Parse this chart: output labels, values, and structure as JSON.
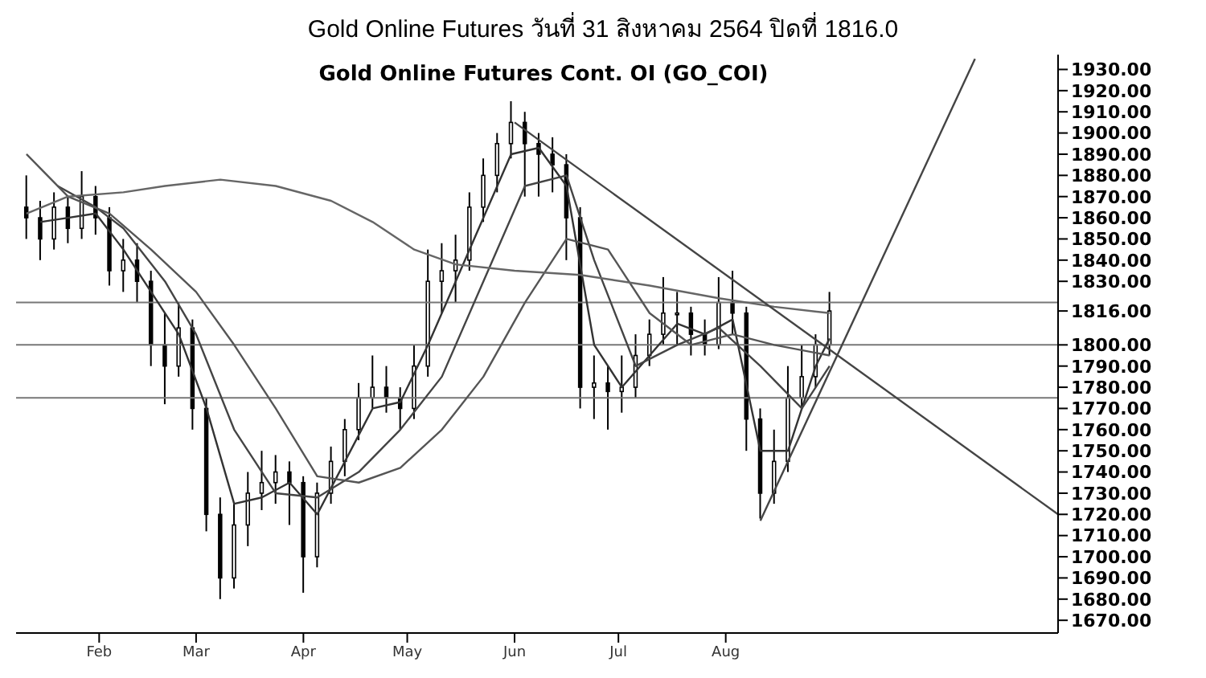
{
  "chart_data": {
    "type": "candlestick",
    "title": "Gold Online Futures วันที่   31 สิงหาคม   2564 ปิดที่   1816.0",
    "subtitle": "Gold  Online  Futures  Cont.  OI  (GO_COI)",
    "x": [
      "--01-11",
      "--01-15",
      "--01-19",
      "--01-23",
      "--01-27",
      "--01-31",
      "--02-04",
      "--02-08",
      "--02-12",
      "--02-16",
      "--02-20",
      "--02-24",
      "--02-28",
      "--03-04",
      "--03-08",
      "--03-12",
      "--03-16",
      "--03-20",
      "--03-24",
      "--03-28",
      "--04-01",
      "--04-05",
      "--04-09",
      "--04-13",
      "--04-17",
      "--04-21",
      "--04-25",
      "--04-29",
      "--05-03",
      "--05-07",
      "--05-11",
      "--05-15",
      "--05-19",
      "--05-23",
      "--05-27",
      "--05-31",
      "--06-04",
      "--06-08",
      "--06-12",
      "--06-16",
      "--06-20",
      "--06-24",
      "--06-28",
      "--07-02",
      "--07-06",
      "--07-10",
      "--07-14",
      "--07-18",
      "--07-22",
      "--07-26",
      "--07-30",
      "--08-03",
      "--08-07",
      "--08-11",
      "--08-15",
      "--08-19",
      "--08-23",
      "--08-27",
      "--08-31"
    ],
    "ohlc": [
      [
        1865,
        1880,
        1850,
        1860
      ],
      [
        1860,
        1868,
        1840,
        1850
      ],
      [
        1850,
        1872,
        1845,
        1865
      ],
      [
        1865,
        1870,
        1848,
        1855
      ],
      [
        1855,
        1882,
        1850,
        1870
      ],
      [
        1870,
        1875,
        1852,
        1860
      ],
      [
        1860,
        1865,
        1828,
        1835
      ],
      [
        1835,
        1850,
        1825,
        1840
      ],
      [
        1840,
        1848,
        1820,
        1830
      ],
      [
        1830,
        1835,
        1790,
        1800
      ],
      [
        1800,
        1815,
        1772,
        1790
      ],
      [
        1790,
        1820,
        1785,
        1808
      ],
      [
        1808,
        1812,
        1760,
        1770
      ],
      [
        1770,
        1775,
        1712,
        1720
      ],
      [
        1720,
        1728,
        1680,
        1690
      ],
      [
        1690,
        1725,
        1685,
        1715
      ],
      [
        1715,
        1740,
        1705,
        1730
      ],
      [
        1730,
        1750,
        1722,
        1735
      ],
      [
        1735,
        1748,
        1725,
        1740
      ],
      [
        1740,
        1745,
        1715,
        1735
      ],
      [
        1735,
        1738,
        1683,
        1700
      ],
      [
        1700,
        1735,
        1695,
        1730
      ],
      [
        1730,
        1752,
        1725,
        1745
      ],
      [
        1745,
        1765,
        1738,
        1760
      ],
      [
        1760,
        1782,
        1755,
        1775
      ],
      [
        1775,
        1795,
        1770,
        1780
      ],
      [
        1780,
        1790,
        1768,
        1775
      ],
      [
        1775,
        1780,
        1760,
        1770
      ],
      [
        1770,
        1800,
        1765,
        1790
      ],
      [
        1790,
        1845,
        1785,
        1830
      ],
      [
        1830,
        1848,
        1815,
        1835
      ],
      [
        1835,
        1852,
        1820,
        1840
      ],
      [
        1840,
        1872,
        1835,
        1865
      ],
      [
        1865,
        1888,
        1858,
        1880
      ],
      [
        1880,
        1900,
        1872,
        1895
      ],
      [
        1895,
        1915,
        1888,
        1905
      ],
      [
        1905,
        1910,
        1870,
        1895
      ],
      [
        1895,
        1900,
        1870,
        1890
      ],
      [
        1890,
        1898,
        1872,
        1885
      ],
      [
        1885,
        1890,
        1840,
        1860
      ],
      [
        1860,
        1865,
        1770,
        1780
      ],
      [
        1780,
        1795,
        1765,
        1782
      ],
      [
        1782,
        1790,
        1760,
        1778
      ],
      [
        1778,
        1795,
        1768,
        1780
      ],
      [
        1780,
        1805,
        1775,
        1795
      ],
      [
        1795,
        1812,
        1790,
        1805
      ],
      [
        1805,
        1832,
        1800,
        1815
      ],
      [
        1815,
        1825,
        1800,
        1815
      ],
      [
        1815,
        1818,
        1795,
        1805
      ],
      [
        1805,
        1812,
        1795,
        1800
      ],
      [
        1800,
        1832,
        1798,
        1820
      ],
      [
        1820,
        1835,
        1805,
        1815
      ],
      [
        1815,
        1818,
        1750,
        1765
      ],
      [
        1765,
        1770,
        1718,
        1730
      ],
      [
        1730,
        1760,
        1725,
        1745
      ],
      [
        1745,
        1790,
        1740,
        1775
      ],
      [
        1775,
        1800,
        1770,
        1785
      ],
      [
        1785,
        1805,
        1780,
        1800
      ],
      [
        1800,
        1825,
        1795,
        1816
      ]
    ],
    "series": [
      {
        "type": "line",
        "color": "#333333",
        "x": [
          "--01-15",
          "--01-23",
          "--01-31",
          "--02-08",
          "--02-16",
          "--02-24",
          "--03-04",
          "--03-12",
          "--03-20",
          "--03-28",
          "--04-05",
          "--04-13",
          "--04-21",
          "--04-29",
          "--05-07",
          "--05-15",
          "--05-23",
          "--05-31",
          "--06-08",
          "--06-16",
          "--06-24",
          "--07-02",
          "--07-10",
          "--07-18",
          "--07-26",
          "--08-03",
          "--08-11",
          "--08-19",
          "--08-27",
          "--08-31"
        ],
        "values": [
          1858,
          1860,
          1862,
          1845,
          1825,
          1805,
          1770,
          1725,
          1728,
          1735,
          1720,
          1745,
          1770,
          1773,
          1800,
          1830,
          1860,
          1890,
          1893,
          1875,
          1800,
          1780,
          1795,
          1810,
          1805,
          1812,
          1750,
          1750,
          1790,
          1803
        ]
      },
      {
        "type": "line",
        "color": "#444444",
        "x": [
          "--01-20",
          "--01-31",
          "--02-08",
          "--02-20",
          "--03-01",
          "--03-12",
          "--03-24",
          "--04-05",
          "--04-17",
          "--04-29",
          "--05-11",
          "--05-23",
          "--06-04",
          "--06-16",
          "--06-24",
          "--07-06",
          "--07-18",
          "--07-30",
          "--08-11",
          "--08-23",
          "--08-31"
        ],
        "values": [
          1875,
          1865,
          1855,
          1830,
          1805,
          1760,
          1730,
          1728,
          1740,
          1760,
          1785,
          1830,
          1875,
          1880,
          1840,
          1790,
          1800,
          1808,
          1790,
          1770,
          1790
        ]
      },
      {
        "type": "line",
        "color": "#555555",
        "x": [
          "--01-11",
          "--01-23",
          "--02-04",
          "--02-16",
          "--03-01",
          "--03-12",
          "--03-24",
          "--04-05",
          "--04-17",
          "--04-29",
          "--05-11",
          "--05-23",
          "--06-04",
          "--06-16",
          "--06-28",
          "--07-10",
          "--07-22",
          "--08-03",
          "--08-15",
          "--08-31"
        ],
        "values": [
          1890,
          1870,
          1862,
          1845,
          1825,
          1800,
          1770,
          1738,
          1735,
          1742,
          1760,
          1785,
          1820,
          1850,
          1845,
          1815,
          1800,
          1805,
          1800,
          1795
        ]
      },
      {
        "type": "line",
        "color": "#666666",
        "x": [
          "--01-11",
          "--01-23",
          "--02-08",
          "--02-20",
          "--03-08",
          "--03-24",
          "--04-09",
          "--04-21",
          "--05-03",
          "--05-15",
          "--06-01",
          "--06-20",
          "--07-10",
          "--07-30",
          "--08-15",
          "--08-31"
        ],
        "values": [
          1862,
          1870,
          1872,
          1875,
          1878,
          1875,
          1868,
          1858,
          1845,
          1838,
          1835,
          1833,
          1828,
          1822,
          1818,
          1815
        ]
      },
      {
        "type": "line",
        "color": "#444444",
        "x": [
          "--06-01",
          "--11-05"
        ],
        "values": [
          1905,
          1720
        ]
      },
      {
        "type": "line",
        "color": "#444444",
        "x": [
          "--08-11",
          "--10-12"
        ],
        "values": [
          1717,
          1935
        ]
      }
    ],
    "ref_lines": [
      {
        "axis": "y",
        "value": 1820,
        "color": "#777777"
      },
      {
        "axis": "y",
        "value": 1800,
        "color": "#777777"
      },
      {
        "axis": "y",
        "value": 1775,
        "color": "#777777"
      }
    ],
    "xlim": [
      "--01-08",
      "--11-05"
    ],
    "xticks": [
      {
        "value": "--02-01",
        "label": "Feb"
      },
      {
        "value": "--03-01",
        "label": "Mar"
      },
      {
        "value": "--04-01",
        "label": "Apr"
      },
      {
        "value": "--05-01",
        "label": "May"
      },
      {
        "value": "--06-01",
        "label": "Jun"
      },
      {
        "value": "--07-01",
        "label": "Jul"
      },
      {
        "value": "--08-01",
        "label": "Aug"
      }
    ],
    "ylim": [
      1664,
      1937
    ],
    "yticks": [
      {
        "value": 1670,
        "label": "1670.00"
      },
      {
        "value": 1680,
        "label": "1680.00"
      },
      {
        "value": 1690,
        "label": "1690.00"
      },
      {
        "value": 1700,
        "label": "1700.00"
      },
      {
        "value": 1710,
        "label": "1710.00"
      },
      {
        "value": 1720,
        "label": "1720.00"
      },
      {
        "value": 1730,
        "label": "1730.00"
      },
      {
        "value": 1740,
        "label": "1740.00"
      },
      {
        "value": 1750,
        "label": "1750.00"
      },
      {
        "value": 1760,
        "label": "1760.00"
      },
      {
        "value": 1770,
        "label": "1770.00"
      },
      {
        "value": 1780,
        "label": "1780.00"
      },
      {
        "value": 1790,
        "label": "1790.00"
      },
      {
        "value": 1800,
        "label": "1800.00"
      },
      {
        "value": 1816,
        "label": "1816.00"
      },
      {
        "value": 1830,
        "label": "1830.00"
      },
      {
        "value": 1840,
        "label": "1840.00"
      },
      {
        "value": 1850,
        "label": "1850.00"
      },
      {
        "value": 1860,
        "label": "1860.00"
      },
      {
        "value": 1870,
        "label": "1870.00"
      },
      {
        "value": 1880,
        "label": "1880.00"
      },
      {
        "value": 1890,
        "label": "1890.00"
      },
      {
        "value": 1900,
        "label": "1900.00"
      },
      {
        "value": 1910,
        "label": "1910.00"
      },
      {
        "value": 1920,
        "label": "1920.00"
      },
      {
        "value": 1930,
        "label": "1930.00"
      }
    ],
    "grid": false,
    "marker": "none",
    "line_style": "solid"
  }
}
